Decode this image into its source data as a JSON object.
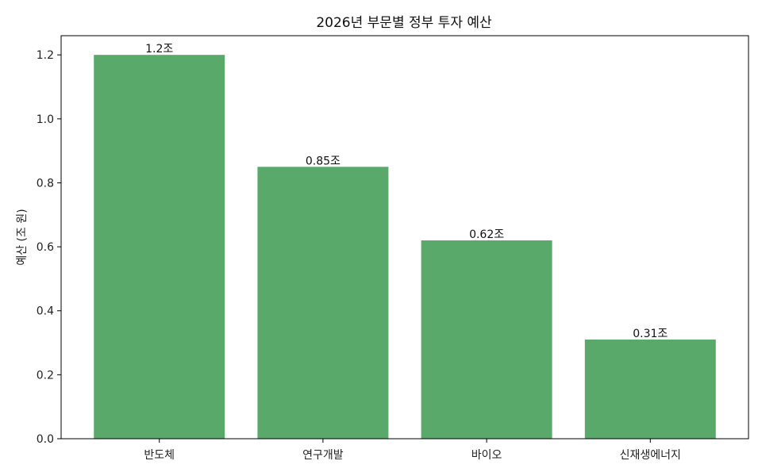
{
  "chart_data": {
    "type": "bar",
    "title": "2026년 부문별 정부 투자 예산",
    "xlabel": "",
    "ylabel": "예산 (조 원)",
    "categories": [
      "반도체",
      "연구개발",
      "바이오",
      "신재생에너지"
    ],
    "values": [
      1.2,
      0.85,
      0.62,
      0.31
    ],
    "data_labels": [
      "1.2조",
      "0.85조",
      "0.62조",
      "0.31조"
    ],
    "ylim": [
      0,
      1.26
    ],
    "yticks": [
      0.0,
      0.2,
      0.4,
      0.6,
      0.8,
      1.0,
      1.2
    ],
    "ytick_labels": [
      "0.0",
      "0.2",
      "0.4",
      "0.6",
      "0.8",
      "1.0",
      "1.2"
    ],
    "bar_color": "#59a96a",
    "grid": false,
    "legend": "none"
  }
}
